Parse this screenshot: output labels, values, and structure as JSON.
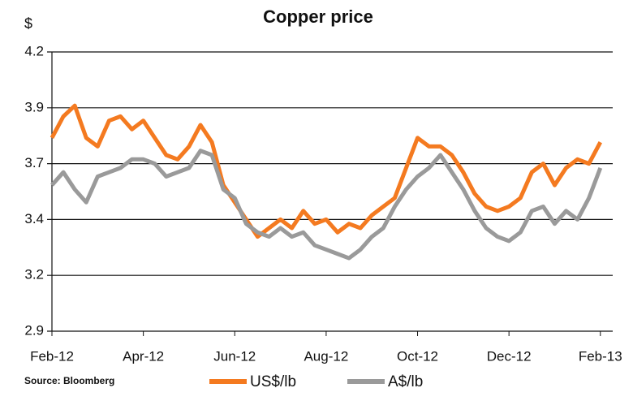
{
  "chart_data": {
    "type": "line",
    "title": "Copper price",
    "y_label": "$",
    "source": "Source: Bloomberg",
    "x": [
      0,
      0.25,
      0.5,
      0.75,
      1,
      1.25,
      1.5,
      1.75,
      2,
      2.25,
      2.5,
      2.75,
      3,
      3.25,
      3.5,
      3.75,
      4,
      4.25,
      4.5,
      4.75,
      5,
      5.25,
      5.5,
      5.75,
      6,
      6.25,
      6.5,
      6.75,
      7,
      7.25,
      7.5,
      7.75,
      8,
      8.25,
      8.5,
      8.75,
      9,
      9.25,
      9.5,
      9.75,
      10,
      10.25,
      10.5,
      10.75,
      11,
      11.25,
      11.5,
      11.75,
      12
    ],
    "series": [
      {
        "name": "US$/lb",
        "color": "#f47a20",
        "values": [
          3.8,
          3.9,
          3.95,
          3.8,
          3.76,
          3.88,
          3.9,
          3.84,
          3.88,
          3.8,
          3.72,
          3.7,
          3.76,
          3.86,
          3.78,
          3.58,
          3.5,
          3.42,
          3.34,
          3.38,
          3.42,
          3.38,
          3.46,
          3.4,
          3.42,
          3.36,
          3.4,
          3.38,
          3.44,
          3.48,
          3.52,
          3.66,
          3.8,
          3.76,
          3.76,
          3.72,
          3.64,
          3.54,
          3.48,
          3.46,
          3.48,
          3.52,
          3.64,
          3.68,
          3.58,
          3.66,
          3.7,
          3.68,
          3.78
        ]
      },
      {
        "name": "A$/lb",
        "color": "#9a9a9a",
        "values": [
          3.58,
          3.64,
          3.56,
          3.5,
          3.62,
          3.64,
          3.66,
          3.7,
          3.7,
          3.68,
          3.62,
          3.64,
          3.66,
          3.74,
          3.72,
          3.56,
          3.52,
          3.4,
          3.36,
          3.34,
          3.38,
          3.34,
          3.36,
          3.3,
          3.28,
          3.26,
          3.24,
          3.28,
          3.34,
          3.38,
          3.48,
          3.56,
          3.62,
          3.66,
          3.72,
          3.64,
          3.56,
          3.46,
          3.38,
          3.34,
          3.32,
          3.36,
          3.46,
          3.48,
          3.4,
          3.46,
          3.42,
          3.52,
          3.66
        ]
      }
    ],
    "xlim": [
      0,
      12.27
    ],
    "xticks": [
      {
        "value": 0,
        "label": "Feb-12"
      },
      {
        "value": 2,
        "label": "Apr-12"
      },
      {
        "value": 4,
        "label": "Jun-12"
      },
      {
        "value": 6,
        "label": "Aug-12"
      },
      {
        "value": 8,
        "label": "Oct-12"
      },
      {
        "value": 10,
        "label": "Dec-12"
      },
      {
        "value": 12,
        "label": "Feb-13"
      }
    ],
    "ylim": [
      2.9,
      4.2
    ],
    "yticks": [
      2.9,
      {
        "value": 3.16,
        "label": "3.2"
      },
      {
        "value": 3.42,
        "label": "3.4"
      },
      {
        "value": 3.68,
        "label": "3.7"
      },
      {
        "value": 3.94,
        "label": "3.9"
      },
      4.2
    ],
    "grid": true,
    "legend": "bottom"
  }
}
